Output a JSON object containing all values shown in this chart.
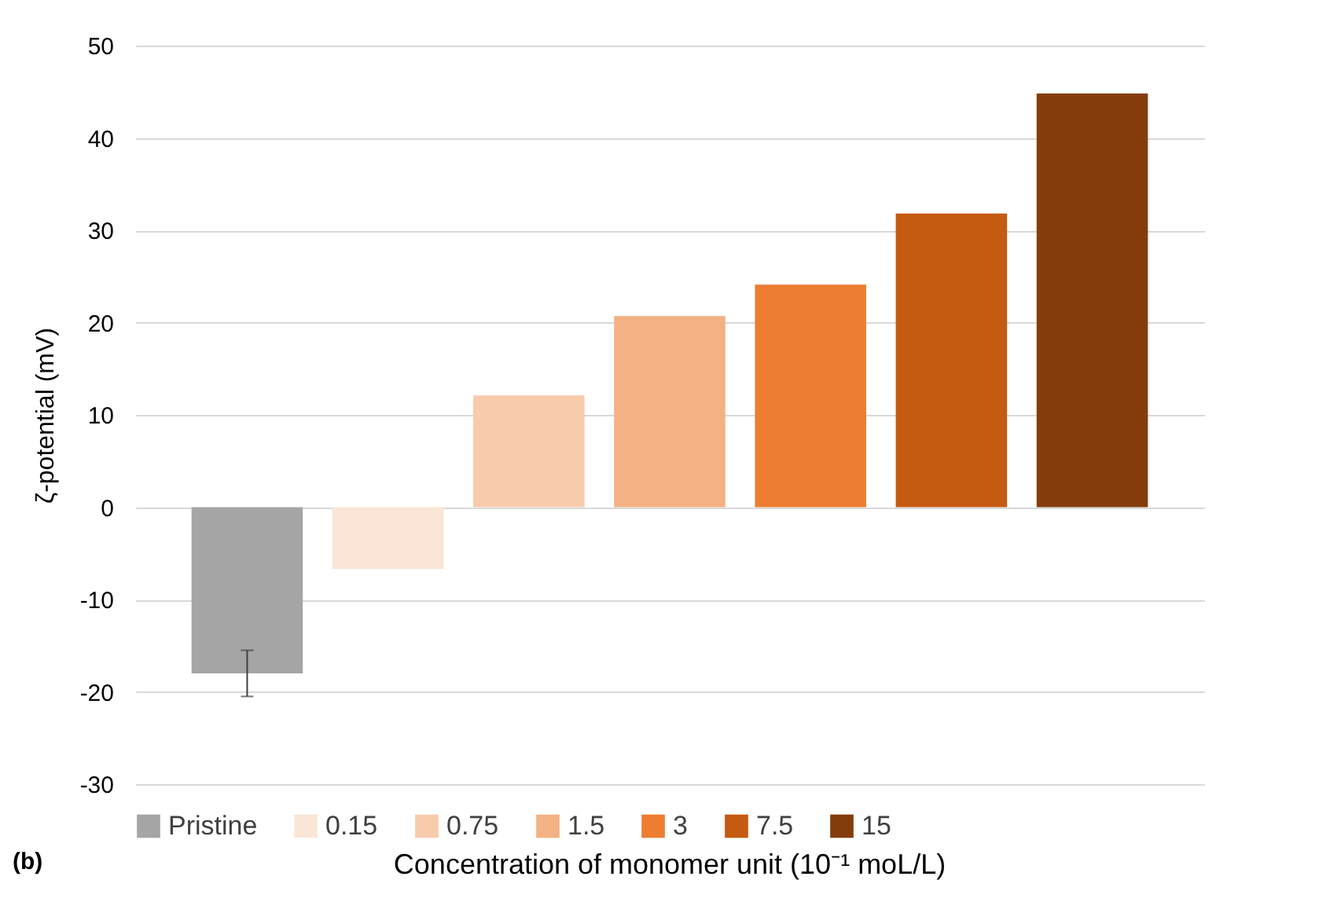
{
  "chart_data": {
    "type": "bar",
    "categories": [
      null,
      null,
      null,
      null,
      null,
      null,
      null
    ],
    "series": [
      {
        "name": "Pristine",
        "color": "#a5a5a5",
        "values": [
          -18.0,
          null,
          null,
          null,
          null,
          null,
          null
        ],
        "errors": [
          2.5,
          null,
          null,
          null,
          null,
          null,
          null
        ]
      },
      {
        "name": "0.15",
        "color": "#fbe5d6",
        "values": [
          null,
          -6.7,
          null,
          null,
          null,
          null,
          null
        ]
      },
      {
        "name": "0.75",
        "color": "#f8cbad",
        "values": [
          null,
          null,
          12.1,
          null,
          null,
          null,
          null
        ]
      },
      {
        "name": "1.5",
        "color": "#f4b183",
        "values": [
          null,
          null,
          null,
          20.7,
          null,
          null,
          null
        ]
      },
      {
        "name": "3",
        "color": "#ed7d31",
        "values": [
          null,
          null,
          null,
          null,
          24.1,
          null,
          null
        ]
      },
      {
        "name": "7.5",
        "color": "#c55a11",
        "values": [
          null,
          null,
          null,
          null,
          null,
          31.8,
          null
        ]
      },
      {
        "name": "15",
        "color": "#843c0c",
        "values": [
          null,
          null,
          null,
          null,
          null,
          null,
          44.8
        ]
      }
    ],
    "xlabel": "Concentration of monomer unit (10⁻¹ moL/L)",
    "ylabel": "ζ-potential (mV)",
    "ylim": [
      -30,
      50
    ],
    "yticks": [
      -30,
      -20,
      -10,
      0,
      10,
      20,
      30,
      40,
      50
    ],
    "grid": "y",
    "legend": "bottom",
    "tick_labels": "y",
    "annotations": [
      "(b)"
    ]
  }
}
